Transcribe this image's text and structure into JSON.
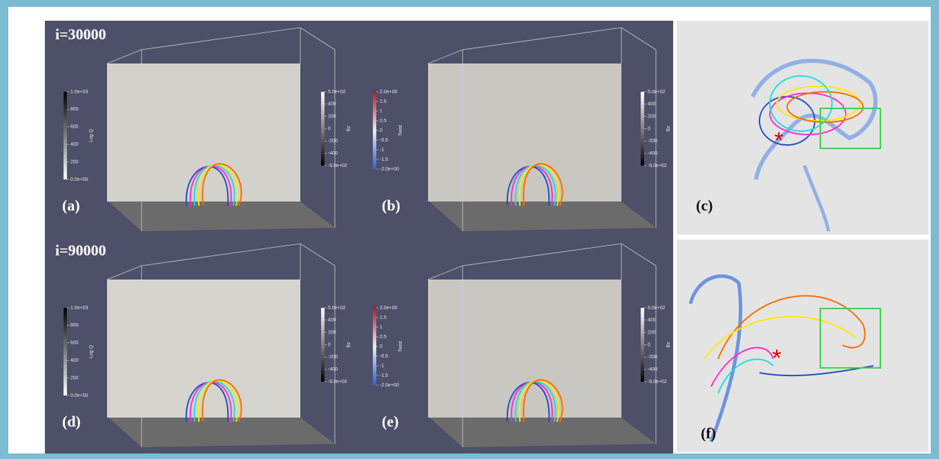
{
  "iterations": [
    "i=30000",
    "i=90000"
  ],
  "panel_labels": [
    "(a)",
    "(b)",
    "(c)",
    "(d)",
    "(e)",
    "(f)"
  ],
  "colorbars": {
    "log_q": {
      "title": "Log Q",
      "ticks": [
        "1.0e+03",
        "800",
        "600",
        "400",
        "200",
        "0.0e+00"
      ]
    },
    "bz": {
      "title": "Bz",
      "ticks": [
        "5.0e+02",
        "400",
        "200",
        "0",
        "-200",
        "-400",
        "-5.0e+02"
      ]
    },
    "twist": {
      "title": "Twist",
      "ticks": [
        "2.0e+00",
        "1.5",
        "1",
        "0.5",
        "0",
        "-0.5",
        "-1",
        "-1.5",
        "-2.0e+00"
      ]
    }
  }
}
